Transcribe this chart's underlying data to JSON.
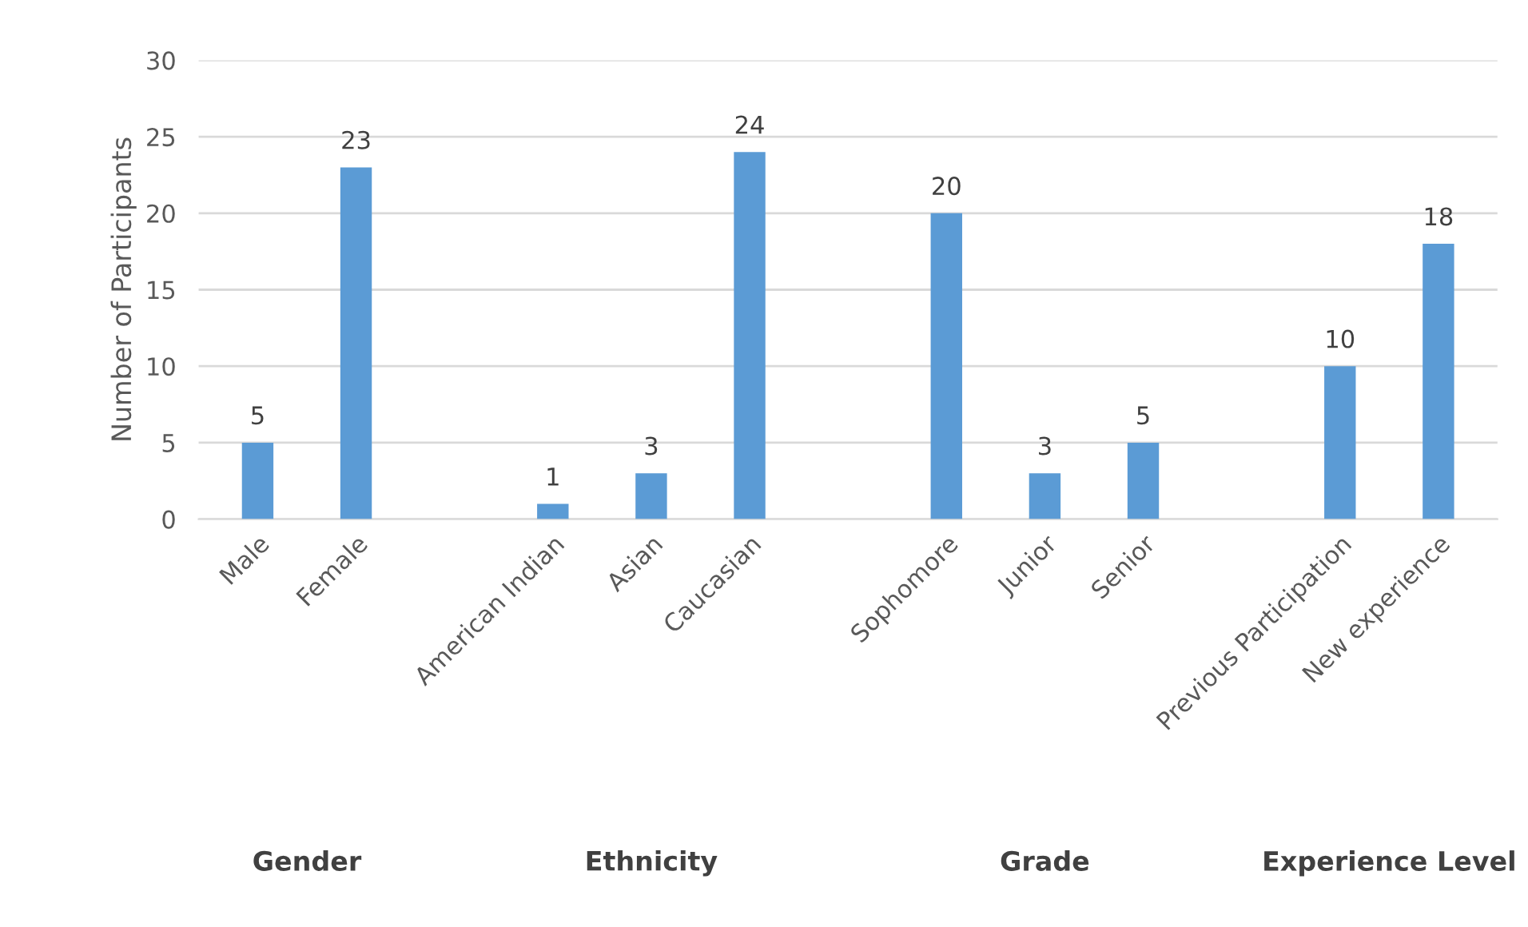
{
  "chart_data": {
    "type": "bar",
    "ylabel": "Number of Participants",
    "categories": [
      "Male",
      "Female",
      null,
      "American Indian",
      "Asian",
      "Caucasian",
      null,
      "Sophomore",
      "Junior",
      "Senior",
      null,
      "Previous Participation",
      "New experience"
    ],
    "values": [
      5,
      23,
      null,
      1,
      3,
      24,
      null,
      20,
      3,
      5,
      null,
      10,
      18
    ],
    "color": "#5b9bd5",
    "ylim": [
      0,
      30
    ],
    "yticks": [
      0,
      5,
      10,
      15,
      20,
      25,
      30
    ],
    "grid": "y",
    "data_labels": true,
    "annotations": [
      "Gender",
      "Ethnicity",
      "Grade",
      "Experience Level"
    ]
  }
}
